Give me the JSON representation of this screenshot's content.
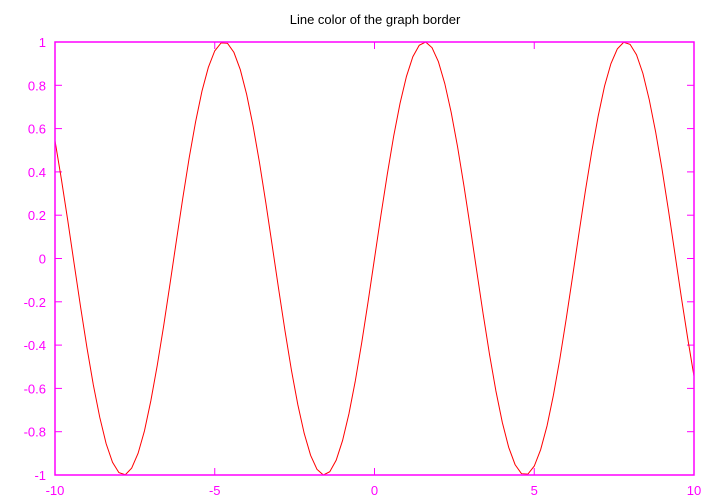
{
  "chart_data": {
    "type": "line",
    "title": "Line color of the graph border",
    "xlabel": "",
    "ylabel": "",
    "xlim": [
      -10,
      10
    ],
    "ylim": [
      -1,
      1
    ],
    "x_ticks": [
      -10,
      -5,
      0,
      5,
      10
    ],
    "x_tick_labels": [
      "-10",
      "-5",
      "0",
      "5",
      "10"
    ],
    "y_ticks": [
      1,
      0.8,
      0.6,
      0.4,
      0.2,
      0,
      -0.2,
      -0.4,
      -0.6,
      -0.8,
      -1
    ],
    "y_tick_labels": [
      "1",
      "0.8",
      "0.6",
      "0.4",
      "0.2",
      "0",
      "-0.2",
      "-0.4",
      "-0.6",
      "-0.8",
      "-1"
    ],
    "grid": false,
    "legend": "none",
    "series": [
      {
        "x": [
          -10,
          -9.8,
          -9.6,
          -9.4,
          -9.2,
          -9,
          -8.8,
          -8.6,
          -8.4,
          -8.2,
          -8,
          -7.8,
          -7.6,
          -7.4,
          -7.2,
          -7,
          -6.8,
          -6.6,
          -6.4,
          -6.2,
          -6,
          -5.8,
          -5.6,
          -5.4,
          -5.2,
          -5,
          -4.8,
          -4.6,
          -4.4,
          -4.2,
          -4,
          -3.8,
          -3.6,
          -3.4,
          -3.2,
          -3,
          -2.8,
          -2.6,
          -2.4,
          -2.2,
          -2,
          -1.8,
          -1.6,
          -1.4,
          -1.2,
          -1,
          -0.8,
          -0.6,
          -0.4,
          -0.2,
          0,
          0.2,
          0.4,
          0.6,
          0.8,
          1,
          1.2,
          1.4,
          1.6,
          1.8,
          2,
          2.2,
          2.4,
          2.6,
          2.8,
          3,
          3.2,
          3.4,
          3.6,
          3.8,
          4,
          4.2,
          4.4,
          4.6,
          4.8,
          5,
          5.2,
          5.4,
          5.6,
          5.8,
          6,
          6.2,
          6.4,
          6.6,
          6.8,
          7,
          7.2,
          7.4,
          7.6,
          7.8,
          8,
          8.2,
          8.4,
          8.6,
          8.8,
          9,
          9.2,
          9.4,
          9.6,
          9.8,
          10
        ],
        "y": [
          0.544,
          0.366,
          0.175,
          -0.025,
          -0.223,
          -0.412,
          -0.584,
          -0.733,
          -0.855,
          -0.941,
          -0.989,
          -0.999,
          -0.968,
          -0.9,
          -0.796,
          -0.657,
          -0.494,
          -0.312,
          -0.117,
          0.083,
          0.279,
          0.465,
          0.631,
          0.773,
          0.883,
          0.959,
          0.996,
          0.994,
          0.952,
          0.872,
          0.757,
          0.612,
          0.443,
          0.256,
          0.058,
          -0.141,
          -0.335,
          -0.516,
          -0.675,
          -0.808,
          -0.909,
          -0.974,
          -1.0,
          -0.985,
          -0.932,
          -0.841,
          -0.717,
          -0.565,
          -0.389,
          -0.199,
          0.0,
          0.199,
          0.389,
          0.565,
          0.717,
          0.841,
          0.932,
          0.985,
          1.0,
          0.974,
          0.909,
          0.808,
          0.675,
          0.516,
          0.335,
          0.141,
          -0.058,
          -0.256,
          -0.443,
          -0.612,
          -0.757,
          -0.872,
          -0.952,
          -0.994,
          -0.996,
          -0.959,
          -0.883,
          -0.773,
          -0.631,
          -0.465,
          -0.279,
          -0.083,
          0.117,
          0.312,
          0.494,
          0.657,
          0.796,
          0.9,
          0.968,
          0.999,
          0.989,
          0.941,
          0.855,
          0.733,
          0.584,
          0.412,
          0.223,
          0.025,
          -0.175,
          -0.366,
          -0.544
        ]
      }
    ]
  },
  "colors": {
    "border": "#ff00ff",
    "tick_labels": "#ff00ff",
    "line": "#ff0000",
    "title": "#000000",
    "background": "#ffffff"
  }
}
